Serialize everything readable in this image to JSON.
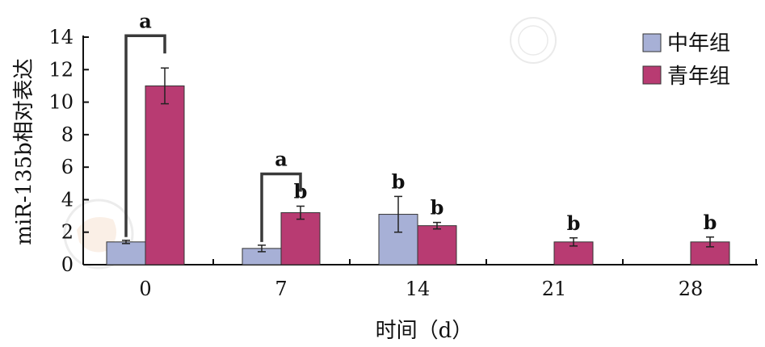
{
  "chart_data": {
    "type": "bar",
    "xlabel": "时间（d）",
    "ylabel": "miR-135b相对表达",
    "ylim": [
      0,
      14
    ],
    "yticks": [
      0,
      2,
      4,
      6,
      8,
      10,
      12,
      14
    ],
    "categories": [
      "0",
      "7",
      "14",
      "21",
      "28"
    ],
    "legend_position": "top-right",
    "series": [
      {
        "name": "中年组",
        "color": "#a7b0d6",
        "values": [
          1.4,
          1.0,
          3.1,
          0,
          0
        ],
        "errors": [
          0.1,
          0.2,
          1.1,
          0,
          0
        ],
        "labels": [
          "",
          "",
          "b",
          "",
          ""
        ]
      },
      {
        "name": "青年组",
        "color": "#b83b72",
        "values": [
          11.0,
          3.2,
          2.4,
          1.4,
          1.4
        ],
        "errors": [
          1.1,
          0.4,
          0.2,
          0.25,
          0.3
        ],
        "labels": [
          "",
          "b",
          "b",
          "b",
          "b"
        ]
      }
    ],
    "brackets": [
      {
        "category_index": 0,
        "label": "a"
      },
      {
        "category_index": 1,
        "label": "a"
      }
    ]
  }
}
